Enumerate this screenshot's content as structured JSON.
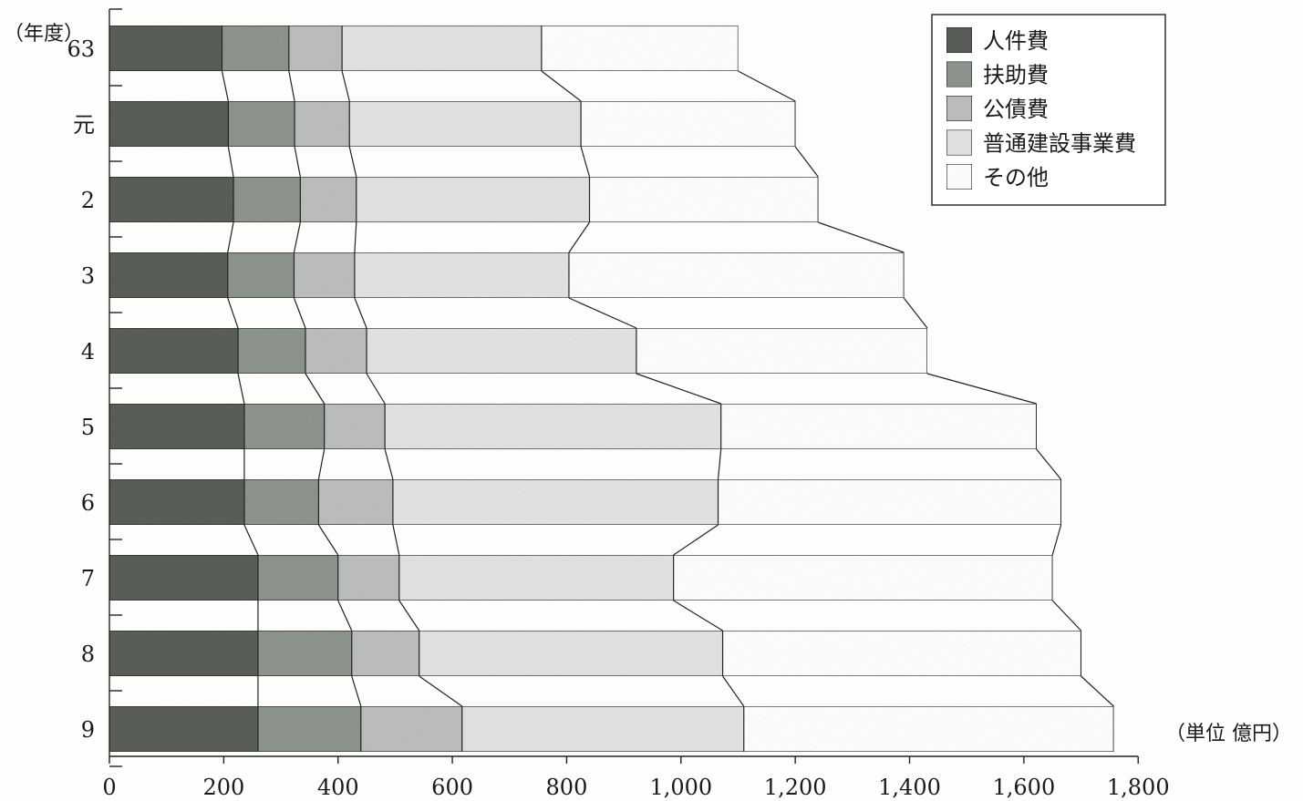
{
  "chart_data": {
    "type": "bar",
    "orientation": "horizontal",
    "stacked": true,
    "y_axis_label": "（年度）",
    "unit_label": "（単位  億円）",
    "categories": [
      "63",
      "元",
      "2",
      "3",
      "4",
      "5",
      "6",
      "7",
      "8",
      "9"
    ],
    "x_ticks": [
      "0",
      "200",
      "400",
      "600",
      "800",
      "1,000",
      "1,200",
      "1,400",
      "1,600",
      "1,800"
    ],
    "xlim": [
      0,
      1800
    ],
    "legend_position": "top-right",
    "series": [
      {
        "name": "人件費",
        "color": "#5a5f5a",
        "values": [
          197,
          208,
          217,
          207,
          225,
          236,
          236,
          260,
          260,
          260
        ]
      },
      {
        "name": "扶助費",
        "color": "#8e948e",
        "values": [
          117,
          116,
          117,
          116,
          118,
          140,
          130,
          140,
          164,
          180
        ]
      },
      {
        "name": "公債費",
        "color": "#bcbfbc",
        "values": [
          93,
          96,
          98,
          106,
          107,
          106,
          130,
          107,
          118,
          177
        ]
      },
      {
        "name": "普通建設事業費",
        "color": "#e4e4e2",
        "values": [
          349,
          405,
          408,
          375,
          472,
          588,
          569,
          480,
          531,
          493
        ]
      },
      {
        "name": "その他",
        "color": "#ffffff",
        "values": [
          344,
          375,
          400,
          586,
          509,
          552,
          600,
          663,
          627,
          647
        ]
      }
    ]
  }
}
